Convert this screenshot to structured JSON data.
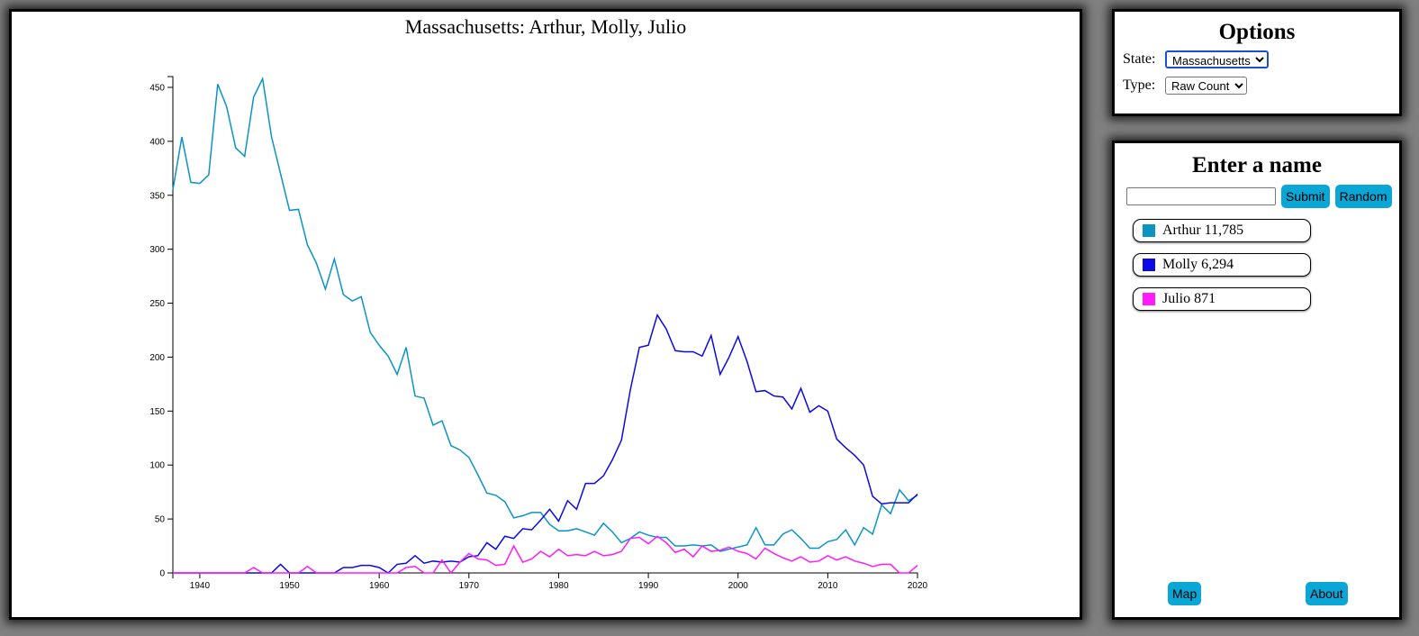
{
  "options": {
    "heading": "Options",
    "state_label": "State:",
    "state_value": "Massachusetts",
    "type_label": "Type:",
    "type_value": "Raw Count"
  },
  "names": {
    "heading": "Enter a name",
    "input_value": "",
    "submit_label": "Submit",
    "random_label": "Random",
    "map_label": "Map",
    "about_label": "About",
    "entries": [
      {
        "name": "Arthur",
        "total": "11,785",
        "color": "#0b93c6"
      },
      {
        "name": "Molly",
        "total": "6,294",
        "color": "#0a0ae6"
      },
      {
        "name": "Julio",
        "total": "871",
        "color": "#ff1aff"
      }
    ]
  },
  "chart_data": {
    "type": "line",
    "title": "Massachusetts: Arthur, Molly, Julio",
    "xlabel": "",
    "ylabel": "",
    "xlim": [
      1937,
      2020
    ],
    "ylim": [
      0,
      460
    ],
    "x_ticks": [
      1940,
      1950,
      1960,
      1970,
      1980,
      1990,
      2000,
      2010,
      2020
    ],
    "y_ticks": [
      0,
      50,
      100,
      150,
      200,
      250,
      300,
      350,
      400,
      450
    ],
    "grid": false,
    "legend": "none",
    "x": [
      1937,
      1938,
      1939,
      1940,
      1941,
      1942,
      1943,
      1944,
      1945,
      1946,
      1947,
      1948,
      1949,
      1950,
      1951,
      1952,
      1953,
      1954,
      1955,
      1956,
      1957,
      1958,
      1959,
      1960,
      1961,
      1962,
      1963,
      1964,
      1965,
      1966,
      1967,
      1968,
      1969,
      1970,
      1971,
      1972,
      1973,
      1974,
      1975,
      1976,
      1977,
      1978,
      1979,
      1980,
      1981,
      1982,
      1983,
      1984,
      1985,
      1986,
      1987,
      1988,
      1989,
      1990,
      1991,
      1992,
      1993,
      1994,
      1995,
      1996,
      1997,
      1998,
      1999,
      2000,
      2001,
      2002,
      2003,
      2004,
      2005,
      2006,
      2007,
      2008,
      2009,
      2010,
      2011,
      2012,
      2013,
      2014,
      2015,
      2016,
      2017,
      2018,
      2019,
      2020
    ],
    "series": [
      {
        "name": "Arthur",
        "color": "#0b93c6",
        "values": [
          355,
          404,
          362,
          361,
          369,
          453,
          432,
          394,
          386,
          441,
          458,
          404,
          370,
          336,
          337,
          304,
          287,
          263,
          291,
          258,
          252,
          256,
          223,
          211,
          201,
          184,
          209,
          164,
          162,
          137,
          141,
          118,
          114,
          107,
          91,
          74,
          72,
          66,
          51,
          53,
          56,
          56,
          45,
          39,
          39,
          41,
          38,
          35,
          46,
          38,
          28,
          32,
          38,
          35,
          33,
          33,
          25,
          25,
          26,
          25,
          26,
          20,
          22,
          24,
          26,
          42,
          26,
          26,
          36,
          40,
          32,
          23,
          23,
          29,
          31,
          40,
          26,
          42,
          36,
          63,
          55,
          77,
          67,
          72
        ]
      },
      {
        "name": "Molly",
        "color": "#0a0ae6",
        "values": [
          0,
          0,
          0,
          0,
          0,
          0,
          0,
          0,
          0,
          0,
          0,
          0,
          8,
          0,
          0,
          0,
          0,
          0,
          0,
          5,
          5,
          7,
          7,
          5,
          0,
          8,
          9,
          16,
          9,
          11,
          10,
          11,
          10,
          15,
          16,
          28,
          22,
          34,
          32,
          41,
          40,
          49,
          59,
          48,
          67,
          59,
          83,
          83,
          90,
          105,
          123,
          170,
          209,
          211,
          239,
          226,
          206,
          205,
          205,
          201,
          220,
          184,
          200,
          219,
          196,
          168,
          169,
          164,
          163,
          152,
          171,
          149,
          155,
          150,
          124,
          116,
          109,
          100,
          71,
          64,
          65,
          65,
          65,
          73
        ]
      },
      {
        "name": "Julio",
        "color": "#ff1aff",
        "values": [
          0,
          0,
          0,
          0,
          0,
          0,
          0,
          0,
          0,
          5,
          0,
          0,
          0,
          0,
          0,
          6,
          0,
          0,
          0,
          0,
          0,
          0,
          0,
          0,
          0,
          0,
          5,
          6,
          0,
          0,
          12,
          0,
          10,
          18,
          13,
          12,
          7,
          8,
          25,
          10,
          13,
          20,
          15,
          22,
          16,
          17,
          16,
          20,
          16,
          17,
          20,
          32,
          33,
          27,
          34,
          28,
          19,
          22,
          15,
          25,
          20,
          21,
          24,
          20,
          18,
          13,
          23,
          18,
          14,
          11,
          15,
          10,
          11,
          16,
          12,
          15,
          11,
          9,
          6,
          8,
          8,
          0,
          0,
          7
        ]
      }
    ]
  }
}
